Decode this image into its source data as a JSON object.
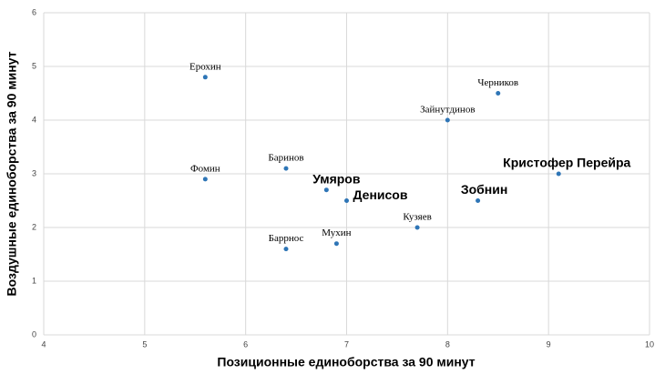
{
  "chart_data": {
    "type": "scatter",
    "x_label": "Позиционные единоборства за 90 минут",
    "y_label": "Воздушные единоборства за 90 минут",
    "xlim": [
      4,
      10
    ],
    "xticks": [
      4,
      5,
      6,
      7,
      8,
      9,
      10
    ],
    "ylim": [
      0,
      6
    ],
    "yticks": [
      0,
      1,
      2,
      3,
      4,
      5,
      6
    ],
    "grid": true,
    "color": "#2e75b6",
    "points": [
      {
        "label": "Ерохин",
        "x": 5.6,
        "y": 4.8,
        "bold": false
      },
      {
        "label": "Фомин",
        "x": 5.6,
        "y": 2.9,
        "bold": false
      },
      {
        "label": "Баринов",
        "x": 6.4,
        "y": 3.1,
        "bold": false
      },
      {
        "label": "Баррнос",
        "x": 6.4,
        "y": 1.6,
        "bold": false
      },
      {
        "label": "Умяров",
        "x": 6.8,
        "y": 2.7,
        "bold": true
      },
      {
        "label": "Денисов",
        "x": 7.0,
        "y": 2.5,
        "bold": true
      },
      {
        "label": "Мухин",
        "x": 6.9,
        "y": 1.7,
        "bold": false
      },
      {
        "label": "Кузяев",
        "x": 7.7,
        "y": 2.0,
        "bold": false
      },
      {
        "label": "Зайнутдинов",
        "x": 8.0,
        "y": 4.0,
        "bold": false
      },
      {
        "label": "Черников",
        "x": 8.5,
        "y": 4.5,
        "bold": false
      },
      {
        "label": "Зобнин",
        "x": 8.3,
        "y": 2.5,
        "bold": true
      },
      {
        "label": "Кристофер Перейра",
        "x": 9.1,
        "y": 3.0,
        "bold": true
      }
    ]
  }
}
